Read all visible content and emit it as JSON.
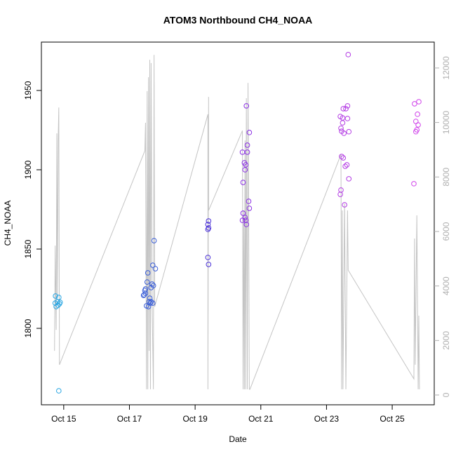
{
  "chart_data": {
    "type": "scatter",
    "title": "ATOM3 Northbound CH4_NOAA",
    "xlabel": "Date",
    "ylabel": "CH4_NOAA",
    "xlim": [
      14.32,
      26.28
    ],
    "xticks": [
      {
        "value": 15,
        "label": "Oct 15"
      },
      {
        "value": 17,
        "label": "Oct 17"
      },
      {
        "value": 19,
        "label": "Oct 19"
      },
      {
        "value": 21,
        "label": "Oct 21"
      },
      {
        "value": 23,
        "label": "Oct 23"
      },
      {
        "value": 25,
        "label": "Oct 25"
      }
    ],
    "ylim": [
      1751.8,
      1980.5
    ],
    "yticks": [
      1800,
      1850,
      1900,
      1950
    ],
    "y2lim": [
      -360,
      12950
    ],
    "y2ticks": [
      0,
      2000,
      4000,
      6000,
      8000,
      10000,
      12000
    ],
    "y2tick_color": "#b0b0b0",
    "series": [
      {
        "color": "#2aa6e2",
        "x": [
          14.75,
          14.85,
          14.74,
          14.81,
          14.87,
          14.77,
          14.83,
          14.89,
          14.85
        ],
        "values": [
          1820.4,
          1819.5,
          1815.9,
          1816.8,
          1815.5,
          1813.7,
          1814.6,
          1816.4,
          1760.6
        ]
      },
      {
        "color": "#3a5ed8",
        "x": [
          17.43,
          17.49,
          17.49,
          17.54,
          17.56,
          17.52,
          17.58,
          17.6,
          17.62,
          17.64,
          17.66,
          17.69,
          17.71,
          17.73,
          17.75,
          17.79,
          17.66,
          17.71,
          17.45,
          17.47
        ],
        "values": [
          1820.8,
          1822.1,
          1824.8,
          1829.2,
          1835,
          1814.2,
          1813.7,
          1816.8,
          1819,
          1815.9,
          1825.7,
          1827.9,
          1839.8,
          1827,
          1855.3,
          1837.6,
          1816.8,
          1815.9,
          1821.2,
          1823.9
        ]
      },
      {
        "color": "#4a30d8",
        "x": [
          19.41,
          19.39,
          19.39,
          19.41,
          19.39,
          19.41
        ],
        "values": [
          1867.7,
          1865.5,
          1862.4,
          1863.3,
          1844.7,
          1840.3
        ]
      },
      {
        "color": "#8a2ee4",
        "x": [
          20.44,
          20.46,
          20.5,
          20.54,
          20.52,
          20.56,
          20.59,
          20.59,
          20.65,
          20.46,
          20.44,
          20.52,
          20.54,
          20.56,
          20.63,
          20.65
        ],
        "values": [
          1911.1,
          1892,
          1904.4,
          1903.1,
          1900,
          1940.3,
          1915.5,
          1911.1,
          1923.5,
          1872.6,
          1868.1,
          1869.9,
          1868.1,
          1865.5,
          1880.1,
          1875.7
        ]
      },
      {
        "color": "#b43de4",
        "x": [
          23.42,
          23.49,
          23.51,
          23.49,
          23.44,
          23.46,
          23.53,
          23.64,
          23.59,
          23.64,
          23.68,
          23.46,
          23.51,
          23.62,
          23.57,
          23.68,
          23.44,
          23.42,
          23.55,
          23.66
        ],
        "values": [
          1933.6,
          1932.7,
          1938.5,
          1929.6,
          1926.2,
          1924.3,
          1923,
          1940.3,
          1938.5,
          1932.3,
          1924,
          1908.4,
          1907.5,
          1903.1,
          1902.2,
          1894.3,
          1887.2,
          1884.5,
          1877.9,
          1972.6
        ]
      },
      {
        "color": "#d042ea",
        "x": [
          25.68,
          25.81,
          25.77,
          25.72,
          25.79,
          25.75,
          25.72,
          25.66
        ],
        "values": [
          1941.6,
          1942.9,
          1935,
          1930.5,
          1928.3,
          1925.2,
          1924,
          1891.2
        ]
      },
      {
        "type": "line",
        "axis": "y2",
        "color": "#c4c4c4",
        "x": [
          14.72,
          14.74,
          14.77,
          14.79,
          14.81,
          14.83,
          14.85,
          14.87,
          17.47,
          17.49,
          17.52,
          17.54,
          17.56,
          17.58,
          17.6,
          17.62,
          17.64,
          17.66,
          17.69,
          17.73,
          17.75,
          17.77,
          19.39,
          19.39,
          19.41,
          19.41,
          20.44,
          20.46,
          20.48,
          20.5,
          20.52,
          20.54,
          20.56,
          20.59,
          20.61,
          20.63,
          20.65,
          20.67,
          23.44,
          23.46,
          23.48,
          23.5,
          23.55,
          23.59,
          23.64,
          23.66,
          25.66,
          25.68,
          25.7,
          25.75,
          25.79,
          25.81,
          25.83
        ],
        "values": [
          1620,
          5480,
          2390,
          9600,
          3680,
          9340,
          10550,
          1110,
          8960,
          9990,
          210,
          11150,
          210,
          11660,
          1620,
          12300,
          210,
          12180,
          3420,
          210,
          12480,
          3240,
          10300,
          210,
          10940,
          6770,
          9700,
          210,
          6770,
          210,
          9340,
          210,
          10890,
          210,
          11450,
          6770,
          210,
          210,
          8830,
          210,
          6770,
          210,
          7030,
          210,
          6770,
          4580,
          590,
          5740,
          1110,
          6590,
          210,
          2910,
          210
        ]
      }
    ]
  }
}
